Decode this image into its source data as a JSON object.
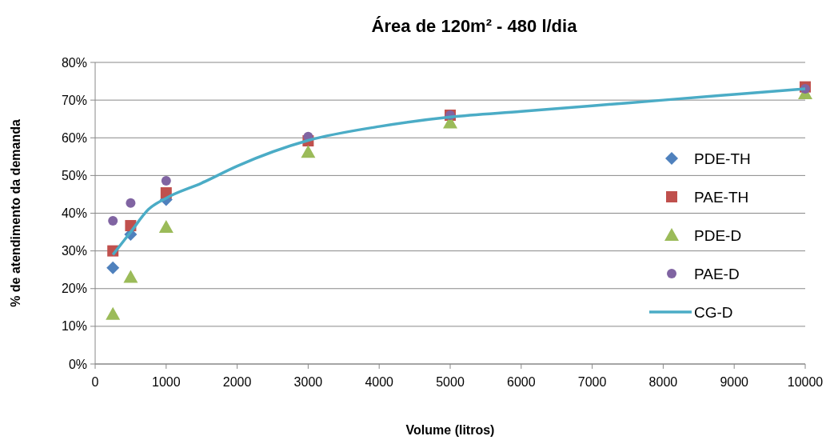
{
  "chart_data": {
    "type": "scatter",
    "title": "Área de 120m² - 480 l/dia",
    "xlabel": "Volume (litros)",
    "ylabel": "% de atendimento da demanda",
    "x": [
      250,
      500,
      1000,
      3000,
      5000,
      10000
    ],
    "series": [
      {
        "name": "PDE-TH",
        "color": "#4f81bd",
        "marker": "diamond",
        "values": [
          25.5,
          34.4,
          43.6,
          null,
          null,
          null
        ]
      },
      {
        "name": "PAE-TH",
        "color": "#c0504d",
        "marker": "square",
        "values": [
          30,
          36.7,
          45.4,
          59.2,
          66,
          73.5
        ]
      },
      {
        "name": "PDE-D",
        "color": "#9bbb59",
        "marker": "triangle",
        "values": [
          13.2,
          23,
          36.3,
          56.2,
          64,
          71.7
        ]
      },
      {
        "name": "PAE-D",
        "color": "#8064a2",
        "marker": "circle",
        "values": [
          38,
          42.7,
          48.6,
          60.3,
          66,
          73
        ]
      },
      {
        "name": "CG-D",
        "color": "#4bacc6",
        "type": "line",
        "marker": "none",
        "x": [
          250,
          500,
          750,
          1000,
          1500,
          2000,
          3000,
          4000,
          5000,
          6000,
          7000,
          8000,
          9000,
          10000
        ],
        "values": [
          29,
          35,
          41,
          44,
          48,
          52.5,
          59.3,
          63,
          65.5,
          67,
          68.5,
          70,
          71.5,
          73
        ]
      }
    ],
    "xlim": [
      0,
      10000
    ],
    "xticks": [
      0,
      1000,
      2000,
      3000,
      4000,
      5000,
      6000,
      7000,
      8000,
      9000,
      10000
    ],
    "ylim": [
      0,
      80
    ],
    "yticks": [
      {
        "value": 0,
        "label": "0%"
      },
      {
        "value": 10,
        "label": "10%"
      },
      {
        "value": 20,
        "label": "20%"
      },
      {
        "value": 30,
        "label": "30%"
      },
      {
        "value": 40,
        "label": "40%"
      },
      {
        "value": 50,
        "label": "50%"
      },
      {
        "value": 60,
        "label": "60%"
      },
      {
        "value": 70,
        "label": "70%"
      },
      {
        "value": 80,
        "label": "80%"
      }
    ],
    "grid": "y",
    "legend": "right"
  }
}
